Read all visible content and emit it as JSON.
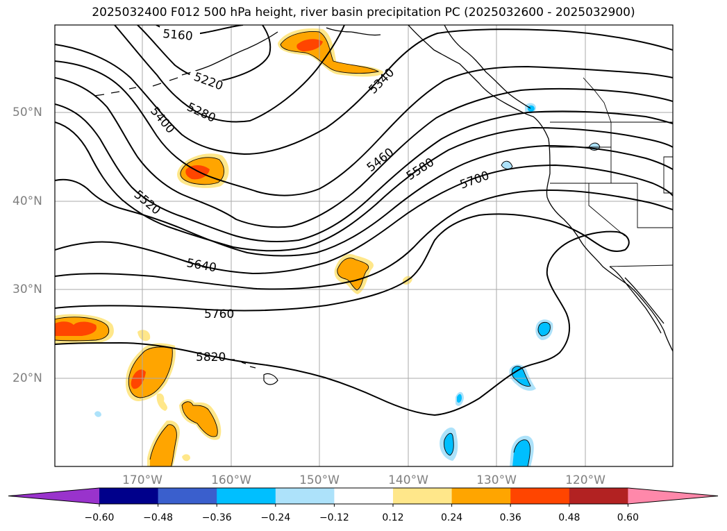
{
  "title": "2025032400 F012 500 hPa height, river basin precipitation PC (2025032600 - 2025032900)",
  "lat_labels": [
    "50°N",
    "40°N",
    "30°N",
    "20°N"
  ],
  "lon_labels": [
    "170°W",
    "160°W",
    "150°W",
    "140°W",
    "130°W",
    "120°W"
  ],
  "contour_labels": [
    "5160",
    "5220",
    "5280",
    "5340",
    "5400",
    "5460",
    "5520",
    "5580",
    "5640",
    "5700",
    "5760",
    "5820"
  ],
  "colorbar": {
    "tick_labels": [
      "−0.60",
      "−0.48",
      "−0.36",
      "−0.24",
      "−0.12",
      "0.12",
      "0.24",
      "0.36",
      "0.48",
      "0.60"
    ],
    "colors": [
      "#9933cc",
      "#00008b",
      "#3a5fcd",
      "#00bfff",
      "#ade2fa",
      "#ffffff",
      "#ffe78a",
      "#ffa500",
      "#ff4500",
      "#b22222",
      "#ff88aa"
    ]
  },
  "colors": {
    "contour": "#000000",
    "grid": "#aaaaaa",
    "label_gray": "#7f7f7f"
  }
}
